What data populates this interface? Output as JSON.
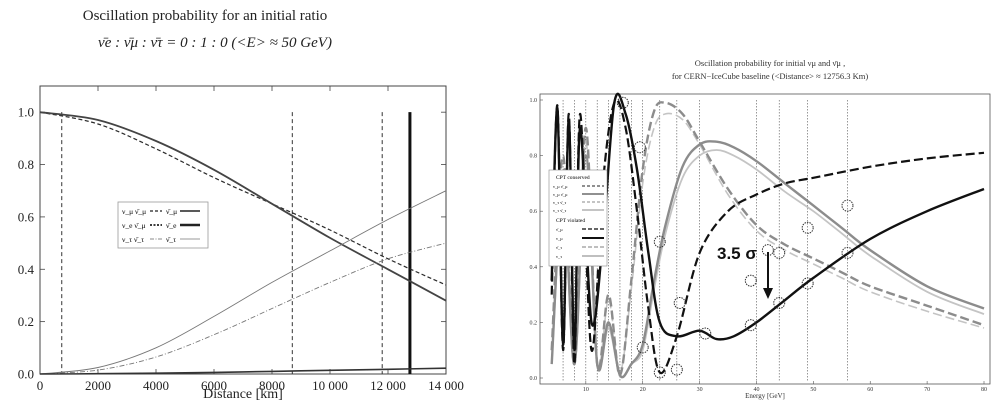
{
  "colors": {
    "ink": "#222222",
    "dark": "#1a1a1a",
    "mid_gray": "#8c8c8c",
    "light_gray": "#c4c4c4",
    "frame": "#444444"
  },
  "chart_data": [
    {
      "type": "line",
      "title_line1": "Oscillation probability for an initial ratio",
      "title_line2": "ν̄e : ν̄μ : ν̄τ = 0 : 1 : 0    (<E> ≈ 50 GeV)",
      "xlabel": "Distance [km]",
      "ylabel": "",
      "xlim": [
        0,
        14000
      ],
      "ylim": [
        0,
        1.1
      ],
      "x_ticks": [
        0,
        2000,
        4000,
        6000,
        8000,
        10000,
        12000,
        14000
      ],
      "x_tick_labels": [
        "0",
        "2000",
        "4000",
        "6000",
        "8000",
        "10 000",
        "12 000",
        "14 000"
      ],
      "y_ticks": [
        0.0,
        0.2,
        0.4,
        0.6,
        0.8,
        1.0
      ],
      "y_tick_labels": [
        "0.0",
        "0.2",
        "0.4",
        "0.6",
        "0.8",
        "1.0"
      ],
      "vertical_markers_km": [
        750,
        8700,
        11800
      ],
      "thick_marker_km": 12756,
      "legend_position": "center-left",
      "legend_rows": [
        [
          "ν_μ ν̄_μ",
          "ν̄_μ"
        ],
        [
          "ν_e ν̄_μ",
          "ν̄_e"
        ],
        [
          "ν_τ ν̄_τ",
          "ν̄_τ"
        ]
      ],
      "series": [
        {
          "style": "dashed-dark",
          "x": [
            0,
            2000,
            4000,
            6000,
            8000,
            10000,
            12000,
            14000
          ],
          "y": [
            1.0,
            0.955,
            0.86,
            0.75,
            0.65,
            0.55,
            0.44,
            0.34
          ]
        },
        {
          "style": "solid-dark",
          "x": [
            0,
            2000,
            4000,
            6000,
            8000,
            10000,
            12000,
            14000
          ],
          "y": [
            1.0,
            0.97,
            0.89,
            0.78,
            0.65,
            0.52,
            0.4,
            0.28
          ]
        },
        {
          "style": "solid-gray",
          "x": [
            0,
            2000,
            4000,
            6000,
            8000,
            10000,
            12000,
            14000
          ],
          "y": [
            0.0,
            0.025,
            0.1,
            0.22,
            0.35,
            0.47,
            0.59,
            0.7
          ]
        },
        {
          "style": "dashdot-gray",
          "x": [
            0,
            2000,
            4000,
            6000,
            8000,
            10000,
            12000,
            14000
          ],
          "y": [
            0.0,
            0.015,
            0.065,
            0.15,
            0.25,
            0.35,
            0.44,
            0.5
          ]
        },
        {
          "style": "solid-dark-thin",
          "x": [
            0,
            2000,
            4000,
            6000,
            8000,
            10000,
            12000,
            14000
          ],
          "y": [
            0.0,
            0.001,
            0.003,
            0.006,
            0.01,
            0.014,
            0.018,
            0.022
          ]
        }
      ]
    },
    {
      "type": "line",
      "title_line1": "Oscillation probability for initial νμ and ν̄μ ,",
      "title_line2": "for CERN−IceCube baseline    (<Distance> ≈ 12756.3 Km)",
      "xlabel": "Energy [GeV]",
      "ylabel": "",
      "xlim": [
        3,
        80
      ],
      "ylim": [
        0,
        1.0
      ],
      "x_ticks": [
        10,
        20,
        30,
        40,
        50,
        60,
        70,
        80
      ],
      "x_tick_labels": [
        "10",
        "20",
        "30",
        "40",
        "50",
        "60",
        "70",
        "80"
      ],
      "y_ticks": [
        0.0,
        0.2,
        0.4,
        0.6,
        0.8,
        1.0
      ],
      "y_tick_labels": [
        "0.0",
        "0.2",
        "0.4",
        "0.6",
        "0.8",
        "1.0"
      ],
      "annotation": "3.5 σ",
      "legend_position": "top-left",
      "legend_header_conserved": "CPT conserved",
      "legend_header_violated": "CPT violated",
      "legend_entries": [
        "ν_μ ν̄_μ",
        "ν_μ ν̄_μ",
        "ν_τ ν̄_τ",
        "ν_τ ν̄_τ",
        "ν̄_μ",
        "ν_μ",
        "ν̄_τ",
        "ν_τ"
      ],
      "series": [
        {
          "style": "dashed-black-thick",
          "x": [
            4,
            5,
            6,
            7,
            8,
            9,
            11,
            13,
            15,
            17,
            19,
            21,
            23,
            26,
            30,
            35,
            40,
            45,
            50,
            60,
            70,
            80
          ],
          "y": [
            0.3,
            0.98,
            0.1,
            0.95,
            0.05,
            0.95,
            0.1,
            0.7,
            0.99,
            0.9,
            0.6,
            0.25,
            0.02,
            0.15,
            0.45,
            0.6,
            0.66,
            0.7,
            0.72,
            0.76,
            0.79,
            0.81
          ]
        },
        {
          "style": "solid-black-thick",
          "x": [
            4,
            5,
            6,
            7,
            8,
            9,
            11,
            13,
            15,
            17,
            19,
            21,
            23,
            26,
            30,
            33,
            36,
            40,
            45,
            50,
            60,
            70,
            80
          ],
          "y": [
            0.35,
            0.97,
            0.12,
            0.93,
            0.1,
            0.9,
            0.2,
            0.5,
            0.99,
            0.95,
            0.75,
            0.45,
            0.2,
            0.15,
            0.17,
            0.14,
            0.15,
            0.2,
            0.28,
            0.36,
            0.5,
            0.6,
            0.68
          ]
        },
        {
          "style": "dashed-gray-thick",
          "x": [
            4,
            6,
            8,
            10,
            12,
            14,
            16,
            18,
            20,
            22,
            24,
            27,
            30,
            35,
            40,
            45,
            50,
            55,
            60,
            70,
            80
          ],
          "y": [
            0.1,
            0.8,
            0.05,
            0.9,
            0.05,
            0.3,
            0.01,
            0.35,
            0.75,
            0.96,
            0.99,
            0.95,
            0.85,
            0.68,
            0.55,
            0.48,
            0.43,
            0.38,
            0.33,
            0.26,
            0.19
          ]
        },
        {
          "style": "solid-gray-thick",
          "x": [
            4,
            6,
            8,
            10,
            12,
            14,
            16,
            18,
            20,
            22,
            24,
            27,
            30,
            33,
            36,
            40,
            45,
            50,
            55,
            60,
            70,
            80
          ],
          "y": [
            0.05,
            0.7,
            0.05,
            0.8,
            0.05,
            0.2,
            0.01,
            0.05,
            0.12,
            0.35,
            0.55,
            0.76,
            0.84,
            0.85,
            0.83,
            0.78,
            0.7,
            0.62,
            0.54,
            0.46,
            0.33,
            0.25
          ]
        },
        {
          "style": "dashed-lightgray",
          "x": [
            4,
            6,
            8,
            10,
            12,
            14,
            16,
            18,
            20,
            22,
            24,
            27,
            30,
            35,
            40,
            45,
            50,
            55,
            60,
            70,
            80
          ],
          "y": [
            0.1,
            0.75,
            0.05,
            0.85,
            0.05,
            0.28,
            0.02,
            0.32,
            0.7,
            0.9,
            0.95,
            0.93,
            0.84,
            0.66,
            0.53,
            0.46,
            0.41,
            0.36,
            0.31,
            0.24,
            0.18
          ]
        },
        {
          "style": "solid-lightgray",
          "x": [
            4,
            6,
            8,
            10,
            12,
            14,
            16,
            18,
            20,
            22,
            24,
            27,
            30,
            33,
            36,
            40,
            45,
            50,
            55,
            60,
            70,
            80
          ],
          "y": [
            0.05,
            0.65,
            0.05,
            0.75,
            0.05,
            0.18,
            0.01,
            0.05,
            0.1,
            0.32,
            0.52,
            0.72,
            0.8,
            0.82,
            0.8,
            0.75,
            0.67,
            0.6,
            0.52,
            0.44,
            0.31,
            0.23
          ]
        }
      ],
      "dotted_vertical_markers_gev": [
        6,
        8,
        10,
        12,
        14,
        16,
        18,
        20,
        23,
        26,
        30,
        40,
        44,
        49,
        56
      ],
      "circle_markers": [
        {
          "x": 16.5,
          "y": 0.99
        },
        {
          "x": 19.5,
          "y": 0.83
        },
        {
          "x": 23,
          "y": 0.49
        },
        {
          "x": 20,
          "y": 0.11
        },
        {
          "x": 23,
          "y": 0.02
        },
        {
          "x": 26,
          "y": 0.03
        },
        {
          "x": 26.5,
          "y": 0.27
        },
        {
          "x": 31,
          "y": 0.16
        },
        {
          "x": 39,
          "y": 0.19
        },
        {
          "x": 39,
          "y": 0.35
        },
        {
          "x": 44,
          "y": 0.27
        },
        {
          "x": 44,
          "y": 0.45
        },
        {
          "x": 49,
          "y": 0.34
        },
        {
          "x": 49,
          "y": 0.54
        },
        {
          "x": 56,
          "y": 0.45
        },
        {
          "x": 56,
          "y": 0.62
        },
        {
          "x": 42,
          "y": 0.46
        }
      ]
    }
  ]
}
